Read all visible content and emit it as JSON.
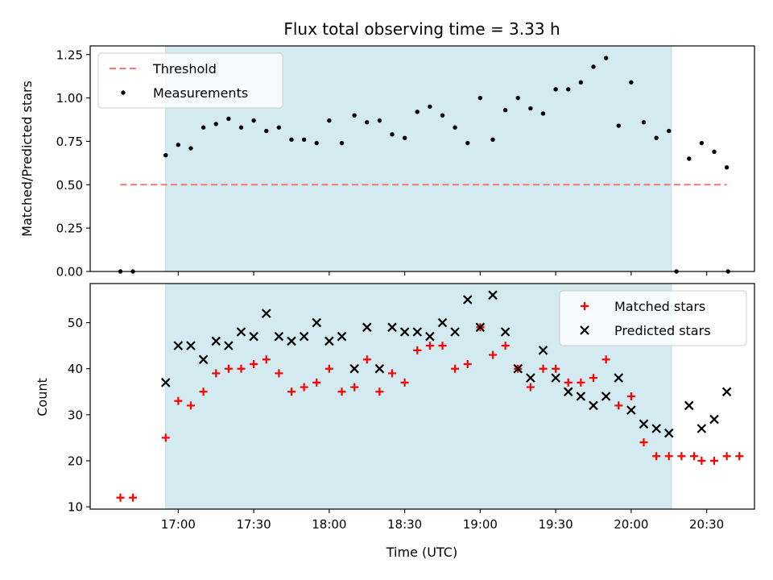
{
  "chart_data": {
    "title": "Flux total observing time = 3.33 h",
    "xlabel": "Time (UTC)",
    "x_tick_labels": [
      "17:00",
      "17:30",
      "18:00",
      "18:30",
      "19:00",
      "19:30",
      "20:00",
      "20:30"
    ],
    "x_tick_minutes": [
      1020,
      1050,
      1080,
      1110,
      1140,
      1170,
      1200,
      1230
    ],
    "xlim_minutes": [
      985,
      1249
    ],
    "shaded_span_minutes": [
      1015,
      1216
    ],
    "shade_color": "#d3eaf1",
    "panels": [
      {
        "type": "scatter",
        "ylabel": "Matched/Predicted stars",
        "ylim": [
          0,
          1.3
        ],
        "yticks": [
          "0.00",
          "0.25",
          "0.50",
          "0.75",
          "1.00",
          "1.25"
        ],
        "ytick_values": [
          0,
          0.25,
          0.5,
          0.75,
          1.0,
          1.25
        ],
        "legend_position": "top-left",
        "threshold": {
          "name": "Threshold",
          "value": 0.5,
          "x_range": [
            997,
            1238
          ],
          "color": "#f07878"
        },
        "series": [
          {
            "name": "Measurements",
            "color": "#000000",
            "marker": "dot",
            "points": [
              [
                997,
                0
              ],
              [
                1002,
                0
              ],
              [
                1015,
                0.67
              ],
              [
                1020,
                0.73
              ],
              [
                1025,
                0.71
              ],
              [
                1030,
                0.83
              ],
              [
                1035,
                0.85
              ],
              [
                1040,
                0.88
              ],
              [
                1045,
                0.83
              ],
              [
                1050,
                0.87
              ],
              [
                1055,
                0.81
              ],
              [
                1060,
                0.83
              ],
              [
                1065,
                0.76
              ],
              [
                1070,
                0.76
              ],
              [
                1075,
                0.74
              ],
              [
                1080,
                0.87
              ],
              [
                1085,
                0.74
              ],
              [
                1090,
                0.9
              ],
              [
                1095,
                0.86
              ],
              [
                1100,
                0.87
              ],
              [
                1105,
                0.79
              ],
              [
                1110,
                0.77
              ],
              [
                1115,
                0.92
              ],
              [
                1120,
                0.95
              ],
              [
                1125,
                0.9
              ],
              [
                1130,
                0.83
              ],
              [
                1135,
                0.74
              ],
              [
                1140,
                1.0
              ],
              [
                1145,
                0.76
              ],
              [
                1150,
                0.93
              ],
              [
                1155,
                1.0
              ],
              [
                1160,
                0.94
              ],
              [
                1165,
                0.91
              ],
              [
                1170,
                1.05
              ],
              [
                1175,
                1.05
              ],
              [
                1180,
                1.09
              ],
              [
                1185,
                1.18
              ],
              [
                1190,
                1.23
              ],
              [
                1195,
                0.84
              ],
              [
                1200,
                1.09
              ],
              [
                1205,
                0.86
              ],
              [
                1210,
                0.77
              ],
              [
                1215,
                0.81
              ],
              [
                1218,
                0
              ],
              [
                1223,
                0.65
              ],
              [
                1228,
                0.74
              ],
              [
                1233,
                0.69
              ],
              [
                1238,
                0.6
              ],
              [
                1238.5,
                0
              ]
            ]
          }
        ]
      },
      {
        "type": "scatter",
        "ylabel": "Count",
        "ylim": [
          9.5,
          58.5
        ],
        "yticks": [
          "10",
          "20",
          "30",
          "40",
          "50"
        ],
        "ytick_values": [
          10,
          20,
          30,
          40,
          50
        ],
        "legend_position": "top-right",
        "series": [
          {
            "name": "Matched stars",
            "color": "#ff0000",
            "marker": "plus",
            "points": [
              [
                997,
                12
              ],
              [
                1002,
                12
              ],
              [
                1015,
                25
              ],
              [
                1020,
                33
              ],
              [
                1025,
                32
              ],
              [
                1030,
                35
              ],
              [
                1035,
                39
              ],
              [
                1040,
                40
              ],
              [
                1045,
                40
              ],
              [
                1050,
                41
              ],
              [
                1055,
                42
              ],
              [
                1060,
                39
              ],
              [
                1065,
                35
              ],
              [
                1070,
                36
              ],
              [
                1075,
                37
              ],
              [
                1080,
                40
              ],
              [
                1085,
                35
              ],
              [
                1090,
                36
              ],
              [
                1095,
                42
              ],
              [
                1100,
                35
              ],
              [
                1105,
                39
              ],
              [
                1110,
                37
              ],
              [
                1115,
                44
              ],
              [
                1120,
                45
              ],
              [
                1125,
                45
              ],
              [
                1130,
                40
              ],
              [
                1135,
                41
              ],
              [
                1140,
                49
              ],
              [
                1145,
                43
              ],
              [
                1150,
                45
              ],
              [
                1155,
                40
              ],
              [
                1160,
                36
              ],
              [
                1165,
                40
              ],
              [
                1170,
                40
              ],
              [
                1175,
                37
              ],
              [
                1180,
                37
              ],
              [
                1185,
                38
              ],
              [
                1190,
                42
              ],
              [
                1195,
                32
              ],
              [
                1200,
                34
              ],
              [
                1205,
                24
              ],
              [
                1210,
                21
              ],
              [
                1215,
                21
              ],
              [
                1220,
                21
              ],
              [
                1225,
                21
              ],
              [
                1228,
                20
              ],
              [
                1233,
                20
              ],
              [
                1238,
                21
              ],
              [
                1243,
                21
              ]
            ]
          },
          {
            "name": "Predicted stars",
            "color": "#000000",
            "marker": "x",
            "points": [
              [
                1015,
                37
              ],
              [
                1020,
                45
              ],
              [
                1025,
                45
              ],
              [
                1030,
                42
              ],
              [
                1035,
                46
              ],
              [
                1040,
                45
              ],
              [
                1045,
                48
              ],
              [
                1050,
                47
              ],
              [
                1055,
                52
              ],
              [
                1060,
                47
              ],
              [
                1065,
                46
              ],
              [
                1070,
                47
              ],
              [
                1075,
                50
              ],
              [
                1080,
                46
              ],
              [
                1085,
                47
              ],
              [
                1090,
                40
              ],
              [
                1095,
                49
              ],
              [
                1100,
                40
              ],
              [
                1105,
                49
              ],
              [
                1110,
                48
              ],
              [
                1115,
                48
              ],
              [
                1120,
                47
              ],
              [
                1125,
                50
              ],
              [
                1130,
                48
              ],
              [
                1135,
                55
              ],
              [
                1140,
                49
              ],
              [
                1145,
                56
              ],
              [
                1150,
                48
              ],
              [
                1155,
                40
              ],
              [
                1160,
                38
              ],
              [
                1165,
                44
              ],
              [
                1170,
                38
              ],
              [
                1175,
                35
              ],
              [
                1180,
                34
              ],
              [
                1185,
                32
              ],
              [
                1190,
                34
              ],
              [
                1195,
                38
              ],
              [
                1200,
                31
              ],
              [
                1205,
                28
              ],
              [
                1210,
                27
              ],
              [
                1215,
                26
              ],
              [
                1223,
                32
              ],
              [
                1228,
                27
              ],
              [
                1233,
                29
              ],
              [
                1238,
                35
              ]
            ]
          }
        ]
      }
    ]
  }
}
